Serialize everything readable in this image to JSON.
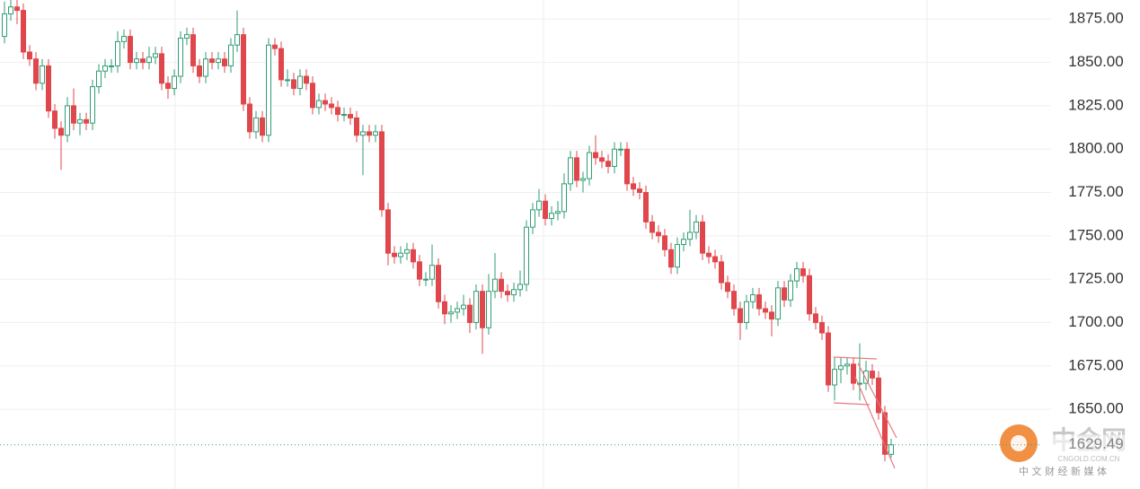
{
  "chart_data": {
    "type": "candlestick",
    "open": [
      1865,
      1878,
      1882,
      1880,
      1856,
      1852,
      1838,
      1848,
      1822,
      1812,
      1808,
      1825,
      1815,
      1817,
      1815,
      1836,
      1845,
      1848,
      1848,
      1862,
      1865,
      1850,
      1852,
      1850,
      1853,
      1855,
      1838,
      1835,
      1842,
      1864,
      1866,
      1848,
      1842,
      1852,
      1850,
      1852,
      1848,
      1860,
      1866,
      1826,
      1810,
      1818,
      1808,
      1860,
      1858,
      1840,
      1840,
      1835,
      1842,
      1838,
      1824,
      1828,
      1826,
      1824,
      1820,
      1820,
      1818,
      1808,
      1810,
      1808,
      1810,
      1765,
      1740,
      1738,
      1740,
      1742,
      1735,
      1725,
      1725,
      1733,
      1712,
      1705,
      1706,
      1708,
      1710,
      1700,
      1718,
      1697,
      1718,
      1725,
      1718,
      1716,
      1719,
      1722,
      1755,
      1765,
      1770,
      1760,
      1763,
      1764,
      1780,
      1795,
      1782,
      1783,
      1798,
      1795,
      1793,
      1790,
      1800,
      1800,
      1780,
      1777,
      1775,
      1758,
      1752,
      1750,
      1742,
      1732,
      1745,
      1748,
      1752,
      1758,
      1740,
      1738,
      1735,
      1723,
      1718,
      1708,
      1700,
      1712,
      1716,
      1708,
      1706,
      1702,
      1720,
      1713,
      1724,
      1731,
      1727,
      1705,
      1700,
      1694,
      1664,
      1673,
      1675,
      1676,
      1665,
      1665,
      1672,
      1668,
      1648,
      1624
    ],
    "high": [
      1885,
      1886,
      1886,
      1884,
      1860,
      1856,
      1852,
      1852,
      1826,
      1816,
      1830,
      1835,
      1821,
      1821,
      1840,
      1849,
      1852,
      1852,
      1868,
      1869,
      1869,
      1856,
      1856,
      1859,
      1859,
      1859,
      1842,
      1846,
      1868,
      1870,
      1870,
      1852,
      1856,
      1856,
      1856,
      1856,
      1864,
      1880,
      1870,
      1830,
      1822,
      1822,
      1864,
      1864,
      1862,
      1846,
      1844,
      1846,
      1846,
      1842,
      1832,
      1832,
      1830,
      1828,
      1824,
      1824,
      1822,
      1814,
      1814,
      1814,
      1814,
      1769,
      1744,
      1744,
      1746,
      1746,
      1739,
      1729,
      1745,
      1737,
      1716,
      1710,
      1712,
      1716,
      1714,
      1722,
      1722,
      1728,
      1740,
      1729,
      1722,
      1723,
      1730,
      1759,
      1769,
      1777,
      1774,
      1767,
      1770,
      1786,
      1799,
      1799,
      1787,
      1802,
      1808,
      1799,
      1797,
      1804,
      1804,
      1804,
      1784,
      1781,
      1779,
      1762,
      1756,
      1754,
      1746,
      1749,
      1752,
      1765,
      1762,
      1762,
      1744,
      1742,
      1739,
      1727,
      1722,
      1712,
      1716,
      1720,
      1720,
      1712,
      1710,
      1724,
      1724,
      1728,
      1735,
      1735,
      1731,
      1709,
      1704,
      1698,
      1680,
      1680,
      1680,
      1680,
      1688,
      1678,
      1676,
      1672,
      1652,
      1633
    ],
    "low": [
      1861,
      1874,
      1872,
      1852,
      1848,
      1834,
      1834,
      1818,
      1806,
      1788,
      1804,
      1811,
      1808,
      1811,
      1811,
      1832,
      1841,
      1844,
      1844,
      1858,
      1846,
      1846,
      1846,
      1846,
      1849,
      1834,
      1829,
      1831,
      1838,
      1860,
      1844,
      1838,
      1838,
      1846,
      1846,
      1844,
      1844,
      1856,
      1822,
      1806,
      1806,
      1804,
      1804,
      1854,
      1836,
      1836,
      1831,
      1831,
      1834,
      1820,
      1820,
      1822,
      1820,
      1816,
      1816,
      1814,
      1804,
      1785,
      1804,
      1804,
      1761,
      1733,
      1734,
      1734,
      1736,
      1731,
      1721,
      1721,
      1721,
      1708,
      1699,
      1700,
      1702,
      1704,
      1694,
      1696,
      1682,
      1693,
      1714,
      1714,
      1712,
      1712,
      1715,
      1718,
      1751,
      1761,
      1756,
      1756,
      1759,
      1760,
      1776,
      1778,
      1775,
      1779,
      1791,
      1789,
      1786,
      1786,
      1796,
      1776,
      1773,
      1771,
      1754,
      1748,
      1746,
      1738,
      1728,
      1728,
      1741,
      1744,
      1748,
      1736,
      1734,
      1731,
      1719,
      1714,
      1704,
      1690,
      1696,
      1708,
      1704,
      1702,
      1692,
      1698,
      1709,
      1709,
      1720,
      1723,
      1701,
      1696,
      1690,
      1660,
      1655,
      1665,
      1670,
      1661,
      1655,
      1661,
      1664,
      1644,
      1620,
      1622
    ],
    "close": [
      1878,
      1882,
      1880,
      1856,
      1852,
      1838,
      1848,
      1822,
      1812,
      1808,
      1825,
      1815,
      1817,
      1815,
      1836,
      1845,
      1848,
      1848,
      1862,
      1865,
      1850,
      1852,
      1850,
      1853,
      1855,
      1838,
      1835,
      1842,
      1864,
      1866,
      1848,
      1842,
      1852,
      1850,
      1852,
      1848,
      1860,
      1866,
      1826,
      1810,
      1818,
      1808,
      1860,
      1858,
      1840,
      1840,
      1835,
      1842,
      1838,
      1824,
      1828,
      1826,
      1824,
      1820,
      1820,
      1818,
      1808,
      1810,
      1808,
      1810,
      1765,
      1740,
      1738,
      1740,
      1742,
      1735,
      1725,
      1725,
      1733,
      1712,
      1705,
      1706,
      1708,
      1710,
      1700,
      1718,
      1697,
      1718,
      1725,
      1718,
      1716,
      1719,
      1722,
      1755,
      1765,
      1770,
      1760,
      1763,
      1764,
      1780,
      1795,
      1782,
      1783,
      1798,
      1795,
      1793,
      1790,
      1800,
      1800,
      1780,
      1777,
      1775,
      1758,
      1752,
      1750,
      1742,
      1732,
      1745,
      1748,
      1752,
      1758,
      1740,
      1738,
      1735,
      1723,
      1718,
      1708,
      1700,
      1712,
      1716,
      1708,
      1706,
      1702,
      1720,
      1713,
      1724,
      1731,
      1727,
      1705,
      1700,
      1694,
      1664,
      1673,
      1675,
      1676,
      1665,
      1665,
      1672,
      1668,
      1648,
      1624,
      1629.49
    ],
    "up_color": "#2f9e74",
    "down_color": "#e0474c",
    "ylim": [
      1604,
      1886
    ],
    "yticks": [
      {
        "value": 1650,
        "label": "1650.00"
      },
      {
        "value": 1675,
        "label": "1675.00"
      },
      {
        "value": 1700,
        "label": "1700.00"
      },
      {
        "value": 1725,
        "label": "1725.00"
      },
      {
        "value": 1750,
        "label": "1750.00"
      },
      {
        "value": 1775,
        "label": "1775.00"
      },
      {
        "value": 1800,
        "label": "1800.00"
      },
      {
        "value": 1825,
        "label": "1825.00"
      },
      {
        "value": 1850,
        "label": "1850.00"
      },
      {
        "value": 1875,
        "label": "1875.00"
      }
    ],
    "grid": true,
    "last_price": {
      "value": 1629.49,
      "label": "1629.49"
    }
  },
  "watermark": {
    "title": "中金网",
    "site": "CNGOLD.COM.CN",
    "tagline": "中 文 财 经 新 媒 体"
  }
}
